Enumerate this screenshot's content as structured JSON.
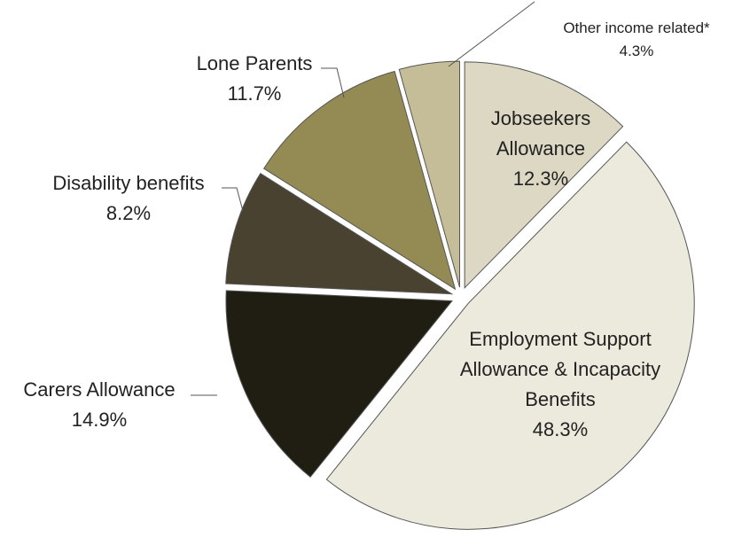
{
  "chart_data": {
    "type": "pie",
    "categories": [
      "Jobseekers Allowance",
      "Employment Support Allowance & Incapacity Benefits",
      "Carers Allowance",
      "Disability benefits",
      "Lone Parents",
      "Other income related*"
    ],
    "values": [
      12.3,
      48.3,
      14.9,
      8.2,
      11.7,
      4.3
    ],
    "value_labels": [
      "12.3%",
      "48.3%",
      "14.9%",
      "8.2%",
      "11.7%",
      "4.3%"
    ],
    "colors": [
      "#ddd8c4",
      "#ece9dd",
      "#201d12",
      "#4a4230",
      "#948a54",
      "#c4bd97"
    ]
  }
}
